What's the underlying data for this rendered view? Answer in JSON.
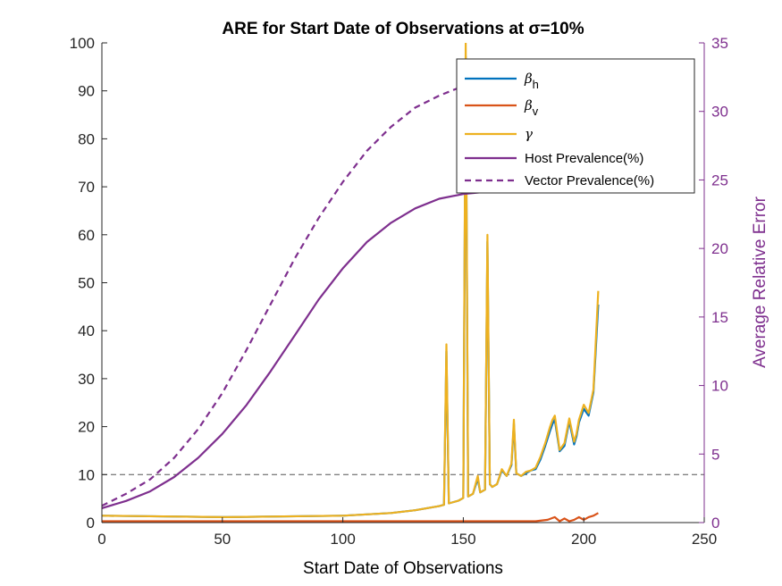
{
  "chart_data": {
    "type": "line",
    "title": "ARE for Start Date of Observations at σ=10%",
    "xlabel": "Start Date of Observations",
    "ylabel": "",
    "y2label": "Average Relative Error",
    "xlim": [
      0,
      250
    ],
    "ylim": [
      0,
      100
    ],
    "y2lim": [
      0,
      35
    ],
    "xticks": [
      "0",
      "50",
      "100",
      "150",
      "200",
      "250"
    ],
    "yticks": [
      "0",
      "10",
      "20",
      "30",
      "40",
      "50",
      "60",
      "70",
      "80",
      "90",
      "100"
    ],
    "y2ticks": [
      "0",
      "5",
      "10",
      "15",
      "20",
      "25",
      "30",
      "35"
    ],
    "grid": false,
    "legend_position": "top-right",
    "reference_line": {
      "axis": "right",
      "y": 3.5,
      "style": "dashed",
      "color": "#555555"
    },
    "series": [
      {
        "name": "β_h",
        "legend_main": "β",
        "legend_sub": "h",
        "axis": "right",
        "color": "#0072BD",
        "style": "solid",
        "x": [
          0,
          50,
          100,
          120,
          130,
          140,
          142,
          143,
          144,
          146,
          148,
          150,
          151,
          152,
          153,
          154,
          156,
          157,
          158,
          159,
          160,
          161,
          162,
          164,
          166,
          168,
          170,
          171,
          172,
          174,
          176,
          178,
          180,
          182,
          184,
          186,
          187,
          188,
          190,
          192,
          194,
          196,
          197,
          198,
          200,
          202,
          204,
          206
        ],
        "y": [
          0.5,
          0.4,
          0.5,
          0.7,
          0.9,
          1.2,
          1.3,
          12.5,
          1.4,
          1.5,
          1.6,
          1.8,
          34,
          1.9,
          2.0,
          2.1,
          3.2,
          2.2,
          2.3,
          2.4,
          20.5,
          2.8,
          2.6,
          2.8,
          3.8,
          3.4,
          4.2,
          7.2,
          3.6,
          3.4,
          3.6,
          3.8,
          3.9,
          4.6,
          5.6,
          6.7,
          7.2,
          7.5,
          5.2,
          5.6,
          7.4,
          5.7,
          6.3,
          7.3,
          8.3,
          7.8,
          9.5,
          15.9
        ]
      },
      {
        "name": "β_v",
        "legend_main": "β",
        "legend_sub": "v",
        "axis": "right",
        "color": "#D95319",
        "style": "solid",
        "x": [
          0,
          50,
          100,
          150,
          180,
          185,
          188,
          190,
          192,
          194,
          196,
          198,
          200,
          202,
          204,
          206
        ],
        "y": [
          0.1,
          0.1,
          0.1,
          0.1,
          0.1,
          0.2,
          0.4,
          0.1,
          0.3,
          0.1,
          0.2,
          0.4,
          0.2,
          0.4,
          0.5,
          0.7
        ]
      },
      {
        "name": "γ",
        "legend_main": "γ",
        "legend_sub": "",
        "axis": "right",
        "color": "#EDB120",
        "style": "solid",
        "x": [
          0,
          50,
          100,
          120,
          130,
          140,
          142,
          143,
          144,
          146,
          148,
          150,
          151,
          152,
          153,
          154,
          156,
          157,
          158,
          159,
          160,
          161,
          162,
          164,
          166,
          168,
          170,
          171,
          172,
          174,
          176,
          178,
          180,
          182,
          184,
          186,
          187,
          188,
          190,
          192,
          194,
          196,
          197,
          198,
          200,
          202,
          204,
          206
        ],
        "y": [
          0.5,
          0.4,
          0.5,
          0.7,
          0.9,
          1.2,
          1.3,
          13.0,
          1.4,
          1.5,
          1.6,
          1.8,
          35,
          1.9,
          2.0,
          2.1,
          3.4,
          2.2,
          2.3,
          2.4,
          21.0,
          2.8,
          2.6,
          2.8,
          3.9,
          3.4,
          4.3,
          7.5,
          3.6,
          3.4,
          3.7,
          3.8,
          4.0,
          4.8,
          5.8,
          7.0,
          7.5,
          7.8,
          5.3,
          5.8,
          7.6,
          5.9,
          6.5,
          7.5,
          8.6,
          8.0,
          9.7,
          16.9
        ]
      },
      {
        "name": "Host Prevalence(%)",
        "legend_main": "Host Prevalence(%)",
        "legend_sub": "",
        "axis": "left",
        "color": "#7E2F8E",
        "style": "solid",
        "x": [
          0,
          10,
          20,
          30,
          40,
          50,
          60,
          70,
          80,
          90,
          100,
          110,
          120,
          130,
          140,
          150,
          160
        ],
        "y": [
          3.0,
          4.5,
          6.5,
          9.5,
          13.5,
          18.5,
          24.5,
          31.5,
          39.0,
          46.5,
          53.0,
          58.5,
          62.5,
          65.5,
          67.5,
          68.5,
          69.0
        ]
      },
      {
        "name": "Vector Prevalence(%)",
        "legend_main": "Vector Prevalence(%)",
        "legend_sub": "",
        "axis": "left",
        "color": "#7E2F8E",
        "style": "dashed",
        "x": [
          0,
          10,
          20,
          30,
          40,
          50,
          60,
          70,
          80,
          90,
          100,
          110,
          120,
          130,
          140,
          150
        ],
        "y": [
          3.5,
          6.0,
          9.0,
          13.5,
          19.5,
          27.0,
          36.0,
          45.5,
          55.0,
          63.5,
          71.0,
          77.5,
          82.5,
          86.5,
          89.0,
          91.0
        ]
      }
    ]
  }
}
